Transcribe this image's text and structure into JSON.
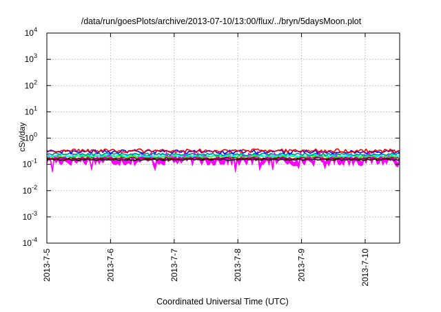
{
  "chart_data": {
    "type": "area",
    "title": "/data/run/goesPlots/archive/2013-07-10/13:00/flux/../bryn/5daysMoon.plot",
    "xlabel": "Coordinated Universal Time (UTC)",
    "ylabel": "cSv/day",
    "y_scale": "log",
    "ylim": [
      0.0001,
      10000
    ],
    "y_ticks": [
      {
        "mantissa": "10",
        "exp": "-4"
      },
      {
        "mantissa": "10",
        "exp": "-3"
      },
      {
        "mantissa": "10",
        "exp": "-2"
      },
      {
        "mantissa": "10",
        "exp": "-1"
      },
      {
        "mantissa": "10",
        "exp": "0"
      },
      {
        "mantissa": "10",
        "exp": "1"
      },
      {
        "mantissa": "10",
        "exp": "2"
      },
      {
        "mantissa": "10",
        "exp": "3"
      },
      {
        "mantissa": "10",
        "exp": "4"
      }
    ],
    "x_range": [
      "2013-07-05 00:00",
      "2013-07-10 13:00"
    ],
    "x_tick_labels": [
      "2013-7-5",
      "2013-7-6",
      "2013-7-7",
      "2013-7-8",
      "2013-7-9",
      "2013-7-10"
    ],
    "grid": true,
    "series": [
      {
        "color": "#ff00ff",
        "level": 0.13,
        "spread": 0.35,
        "style": "filled-band",
        "spikes": [
          {
            "x": "2013-07-05 02:00",
            "y": 0.05
          },
          {
            "x": "2013-07-05 17:00",
            "y": 0.06
          },
          {
            "x": "2013-07-06 17:00",
            "y": 0.06
          },
          {
            "x": "2013-07-07 23:00",
            "y": 0.05
          },
          {
            "x": "2013-07-08 08:00",
            "y": 0.06
          },
          {
            "x": "2013-07-08 13:00",
            "y": 0.06
          },
          {
            "x": "2013-07-08 23:00",
            "y": 0.07
          },
          {
            "x": "2013-07-09 09:00",
            "y": 0.07
          },
          {
            "x": "2013-07-10 12:00",
            "y": 0.08
          }
        ]
      },
      {
        "color": "#000000",
        "level": 0.15,
        "spread": 0.05
      },
      {
        "color": "#8b0000",
        "level": 0.17,
        "spread": 0.06
      },
      {
        "color": "#00ff00",
        "level": 0.2,
        "spread": 0.07
      },
      {
        "color": "#00ffff",
        "level": 0.22,
        "spread": 0.08
      },
      {
        "color": "#008b8b",
        "level": 0.24,
        "spread": 0.09
      },
      {
        "color": "#0000ff",
        "level": 0.3,
        "spread": 0.14
      },
      {
        "color": "#ff0000",
        "level": 0.33,
        "spread": 0.14
      }
    ]
  }
}
